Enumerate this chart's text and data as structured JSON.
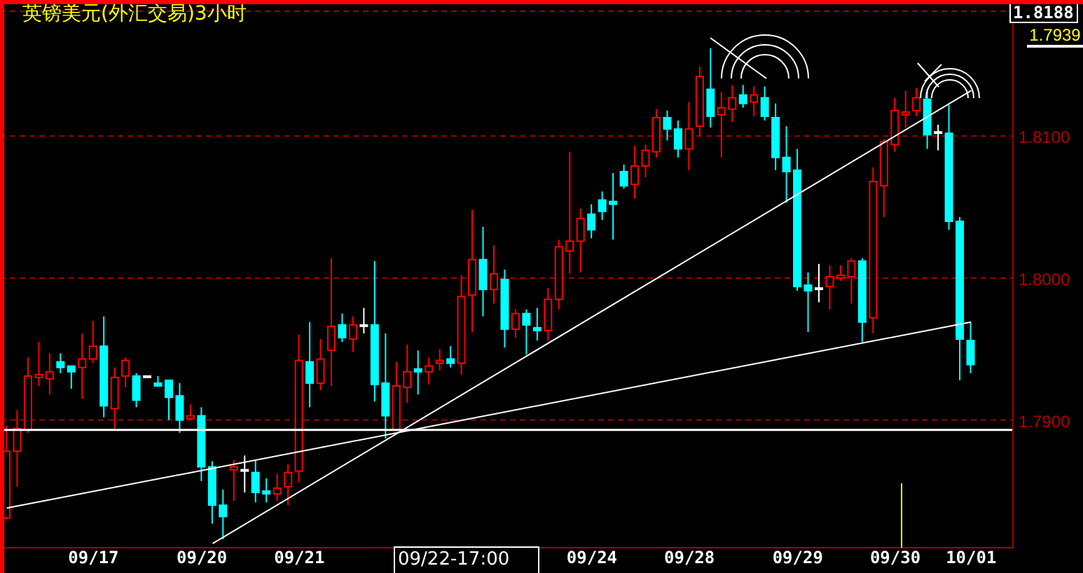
{
  "chart_data": {
    "type": "candlestick",
    "title": "英镑美元(外汇交易)3小时",
    "categories": [
      null,
      null,
      null,
      null,
      null,
      null,
      null,
      null,
      "09/17",
      null,
      null,
      null,
      null,
      null,
      null,
      null,
      null,
      null,
      "09/20",
      null,
      null,
      null,
      null,
      null,
      null,
      null,
      null,
      "09/21",
      null,
      null,
      null,
      null,
      null,
      null,
      null,
      null,
      null,
      null,
      null,
      null,
      null,
      null,
      null,
      null,
      null,
      null,
      null,
      null,
      null,
      null,
      null,
      null,
      null,
      null,
      "09/24",
      null,
      null,
      null,
      null,
      null,
      null,
      null,
      null,
      "09/28",
      null,
      null,
      null,
      null,
      null,
      null,
      null,
      null,
      null,
      "09/29",
      null,
      null,
      null,
      null,
      null,
      null,
      null,
      null,
      "09/30",
      null,
      null,
      null,
      null,
      null,
      null,
      "10/01"
    ],
    "ohlc": [
      [
        1.7831,
        1.7896,
        1.783,
        1.7878
      ],
      [
        1.7878,
        1.7907,
        1.7853,
        1.7894
      ],
      [
        1.7893,
        1.7944,
        1.7891,
        1.7931
      ],
      [
        1.793,
        1.7955,
        1.7924,
        1.7932
      ],
      [
        1.7929,
        1.7947,
        1.7918,
        1.7934
      ],
      [
        1.7941,
        1.7947,
        1.7933,
        1.7937
      ],
      [
        1.7938,
        1.7938,
        1.7922,
        1.7934
      ],
      [
        1.7937,
        1.7961,
        1.7915,
        1.7943
      ],
      [
        1.7943,
        1.797,
        1.794,
        1.7952
      ],
      [
        1.7952,
        1.7973,
        1.7902,
        1.791
      ],
      [
        1.7908,
        1.7937,
        1.7893,
        1.793
      ],
      [
        1.7931,
        1.7944,
        1.7923,
        1.7942
      ],
      [
        1.7931,
        1.7933,
        1.7909,
        1.7914
      ],
      [
        1.7931,
        1.7931,
        1.7931,
        1.7931
      ],
      [
        1.7926,
        1.7931,
        1.7924,
        1.7924
      ],
      [
        1.7928,
        1.7928,
        1.79,
        1.7916
      ],
      [
        1.7917,
        1.7926,
        1.7891,
        1.79
      ],
      [
        1.7901,
        1.7911,
        1.7901,
        1.7903
      ],
      [
        1.7903,
        1.7909,
        1.7857,
        1.7867
      ],
      [
        1.7867,
        1.7871,
        1.7827,
        1.784
      ],
      [
        1.784,
        1.7851,
        1.7816,
        1.7832
      ],
      [
        1.7865,
        1.7872,
        1.7843,
        1.7867
      ],
      [
        1.7865,
        1.7875,
        1.7849,
        1.7865
      ],
      [
        1.7863,
        1.7872,
        1.7842,
        1.7849
      ],
      [
        1.785,
        1.7859,
        1.7842,
        1.7848
      ],
      [
        1.7848,
        1.7862,
        1.7843,
        1.7852
      ],
      [
        1.7853,
        1.7869,
        1.784,
        1.7863
      ],
      [
        1.7864,
        1.796,
        1.7856,
        1.7942
      ],
      [
        1.7941,
        1.7969,
        1.7909,
        1.7926
      ],
      [
        1.7926,
        1.7957,
        1.7921,
        1.7943
      ],
      [
        1.7949,
        1.8014,
        1.7924,
        1.7966
      ],
      [
        1.7967,
        1.7975,
        1.7955,
        1.7958
      ],
      [
        1.7957,
        1.7973,
        1.7948,
        1.7967
      ],
      [
        1.7967,
        1.7979,
        1.7961,
        1.7967
      ],
      [
        1.7967,
        1.8012,
        1.7913,
        1.7925
      ],
      [
        1.7926,
        1.7961,
        1.7887,
        1.7903
      ],
      [
        1.7893,
        1.7941,
        1.7892,
        1.7924
      ],
      [
        1.7923,
        1.7953,
        1.7912,
        1.7934
      ],
      [
        1.7936,
        1.7949,
        1.7918,
        1.7934
      ],
      [
        1.7934,
        1.7944,
        1.7925,
        1.7938
      ],
      [
        1.794,
        1.795,
        1.7935,
        1.7942
      ],
      [
        1.7943,
        1.7952,
        1.7937,
        1.794
      ],
      [
        1.794,
        1.8002,
        1.7932,
        1.7987
      ],
      [
        1.7988,
        1.8048,
        1.7962,
        1.8013
      ],
      [
        1.8013,
        1.8036,
        1.7973,
        1.7992
      ],
      [
        1.7992,
        1.8023,
        1.7982,
        1.8003
      ],
      [
        1.7999,
        1.8006,
        1.7951,
        1.7964
      ],
      [
        1.7964,
        1.7978,
        1.7958,
        1.7975
      ],
      [
        1.7975,
        1.7978,
        1.7946,
        1.7967
      ],
      [
        1.7965,
        1.7979,
        1.7956,
        1.7963
      ],
      [
        1.7963,
        1.7993,
        1.7956,
        1.7985
      ],
      [
        1.7985,
        1.8027,
        1.7978,
        1.8022
      ],
      [
        1.8019,
        1.8089,
        1.8003,
        1.8026
      ],
      [
        1.8026,
        1.8049,
        1.8004,
        1.8042
      ],
      [
        1.8045,
        1.8052,
        1.8028,
        1.8034
      ],
      [
        1.8055,
        1.8061,
        1.8041,
        1.8047
      ],
      [
        1.8054,
        1.8074,
        1.8027,
        1.8052
      ],
      [
        1.8075,
        1.808,
        1.8063,
        1.8065
      ],
      [
        1.8066,
        1.8093,
        1.8056,
        1.8079
      ],
      [
        1.8079,
        1.8094,
        1.8071,
        1.809
      ],
      [
        1.8089,
        1.8119,
        1.8085,
        1.8113
      ],
      [
        1.8113,
        1.8118,
        1.8097,
        1.8105
      ],
      [
        1.8105,
        1.8111,
        1.8085,
        1.8091
      ],
      [
        1.8091,
        1.8124,
        1.8076,
        1.8105
      ],
      [
        1.8107,
        1.8149,
        1.81,
        1.8142
      ],
      [
        1.8133,
        1.8162,
        1.8106,
        1.8114
      ],
      [
        1.8115,
        1.8131,
        1.8085,
        1.812
      ],
      [
        1.8119,
        1.8136,
        1.811,
        1.8127
      ],
      [
        1.8129,
        1.8136,
        1.812,
        1.8123
      ],
      [
        1.8124,
        1.8135,
        1.8114,
        1.8129
      ],
      [
        1.8127,
        1.8135,
        1.8111,
        1.8114
      ],
      [
        1.8113,
        1.8123,
        1.8076,
        1.8085
      ],
      [
        1.8085,
        1.8107,
        1.8053,
        1.8075
      ],
      [
        1.8076,
        1.8091,
        1.7991,
        1.7994
      ],
      [
        1.7995,
        1.8004,
        1.7962,
        1.7991
      ],
      [
        1.7993,
        1.801,
        1.7983,
        1.7993
      ],
      [
        1.7994,
        1.8009,
        1.7978,
        1.8001
      ],
      [
        1.8,
        1.8009,
        1.7998,
        1.8002
      ],
      [
        1.8001,
        1.8014,
        1.7982,
        1.8012
      ],
      [
        1.8012,
        1.8014,
        1.7955,
        1.7969
      ],
      [
        1.7972,
        1.8078,
        1.7961,
        1.8068
      ],
      [
        1.8065,
        1.8098,
        1.8043,
        1.8096
      ],
      [
        1.8094,
        1.8127,
        1.8089,
        1.8118
      ],
      [
        1.8115,
        1.8132,
        1.8106,
        1.8117
      ],
      [
        1.8118,
        1.8134,
        1.8114,
        1.8127
      ],
      [
        1.8126,
        1.8133,
        1.8091,
        1.8101
      ],
      [
        1.8103,
        1.8108,
        1.809,
        1.8103
      ],
      [
        1.8102,
        1.8122,
        1.8034,
        1.804
      ],
      [
        1.804,
        1.8043,
        1.7928,
        1.7957
      ],
      [
        1.7956,
        1.7969,
        1.7933,
        1.7939
      ]
    ],
    "colors": [
      "#ff0000",
      "#ff0000",
      "#ff0000",
      "#ff0000",
      "#ff0000",
      "#00ffff",
      "#00ffff",
      "#ff0000",
      "#ff0000",
      "#00ffff",
      "#ff0000",
      "#ff0000",
      "#00ffff",
      "#ffffff",
      "#00ffff",
      "#00ffff",
      "#00ffff",
      "#ff0000",
      "#00ffff",
      "#00ffff",
      "#00ffff",
      "#ff0000",
      "#ffffff",
      "#00ffff",
      "#00ffff",
      "#ff0000",
      "#ff0000",
      "#ff0000",
      "#00ffff",
      "#ff0000",
      "#ff0000",
      "#00ffff",
      "#ff0000",
      "#ffffff",
      "#00ffff",
      "#00ffff",
      "#ff0000",
      "#ff0000",
      "#00ffff",
      "#ff0000",
      "#ff0000",
      "#00ffff",
      "#ff0000",
      "#ff0000",
      "#00ffff",
      "#ff0000",
      "#00ffff",
      "#ff0000",
      "#00ffff",
      "#00ffff",
      "#ff0000",
      "#ff0000",
      "#ff0000",
      "#ff0000",
      "#00ffff",
      "#00ffff",
      "#00ffff",
      "#00ffff",
      "#ff0000",
      "#ff0000",
      "#ff0000",
      "#00ffff",
      "#00ffff",
      "#ff0000",
      "#ff0000",
      "#00ffff",
      "#ff0000",
      "#ff0000",
      "#00ffff",
      "#ff0000",
      "#00ffff",
      "#00ffff",
      "#00ffff",
      "#00ffff",
      "#00ffff",
      "#ffffff",
      "#ff0000",
      "#ff0000",
      "#ff0000",
      "#00ffff",
      "#ff0000",
      "#ff0000",
      "#ff0000",
      "#ff0000",
      "#ff0000",
      "#00ffff",
      "#ffffff",
      "#00ffff",
      "#00ffff",
      "#00ffff"
    ],
    "series": [
      {
        "type": "line",
        "color": "#ffffff",
        "values": [
          1.7838,
          null,
          null,
          null,
          null,
          null,
          null,
          null,
          null,
          null,
          null,
          null,
          null,
          null,
          null,
          null,
          null,
          null,
          null,
          null,
          null,
          null,
          null,
          null,
          null,
          null,
          null,
          null,
          null,
          null,
          null,
          null,
          null,
          null,
          null,
          null,
          null,
          null,
          null,
          null,
          null,
          null,
          null,
          null,
          null,
          null,
          null,
          null,
          null,
          null,
          null,
          null,
          null,
          null,
          null,
          null,
          null,
          null,
          null,
          null,
          null,
          null,
          null,
          null,
          null,
          null,
          null,
          null,
          null,
          null,
          null,
          null,
          null,
          null,
          null,
          null,
          null,
          null,
          null,
          null,
          null,
          null,
          null,
          null,
          null,
          null,
          null,
          null,
          null,
          1.7969
        ]
      },
      {
        "type": "line",
        "color": "#ffffff",
        "values": [
          null,
          null,
          null,
          null,
          null,
          null,
          null,
          null,
          null,
          null,
          null,
          null,
          null,
          null,
          null,
          null,
          null,
          null,
          null,
          1.7813,
          null,
          null,
          null,
          null,
          null,
          null,
          null,
          null,
          null,
          null,
          null,
          null,
          null,
          null,
          null,
          null,
          null,
          null,
          null,
          null,
          null,
          null,
          null,
          null,
          null,
          null,
          null,
          null,
          null,
          null,
          null,
          null,
          null,
          null,
          null,
          null,
          null,
          null,
          null,
          null,
          null,
          null,
          null,
          null,
          null,
          null,
          null,
          null,
          null,
          null,
          null,
          null,
          null,
          null,
          null,
          null,
          null,
          null,
          null,
          null,
          null,
          null,
          null,
          null,
          null,
          null,
          null,
          null,
          null,
          1.8132
        ]
      }
    ],
    "ylim": [
      1.781,
      1.8188
    ],
    "yticks": [
      {
        "value": 1.79,
        "label": "1.7900"
      },
      {
        "value": 1.8,
        "label": "1.8000"
      },
      {
        "value": 1.81,
        "label": "1.8100"
      },
      1.8188
    ],
    "grid": "y",
    "ref_lines": [
      {
        "axis": "y",
        "value": 1.7893,
        "color": "#ffffff"
      }
    ],
    "annotations": [
      "1.7939",
      "09/22-17:00"
    ]
  }
}
